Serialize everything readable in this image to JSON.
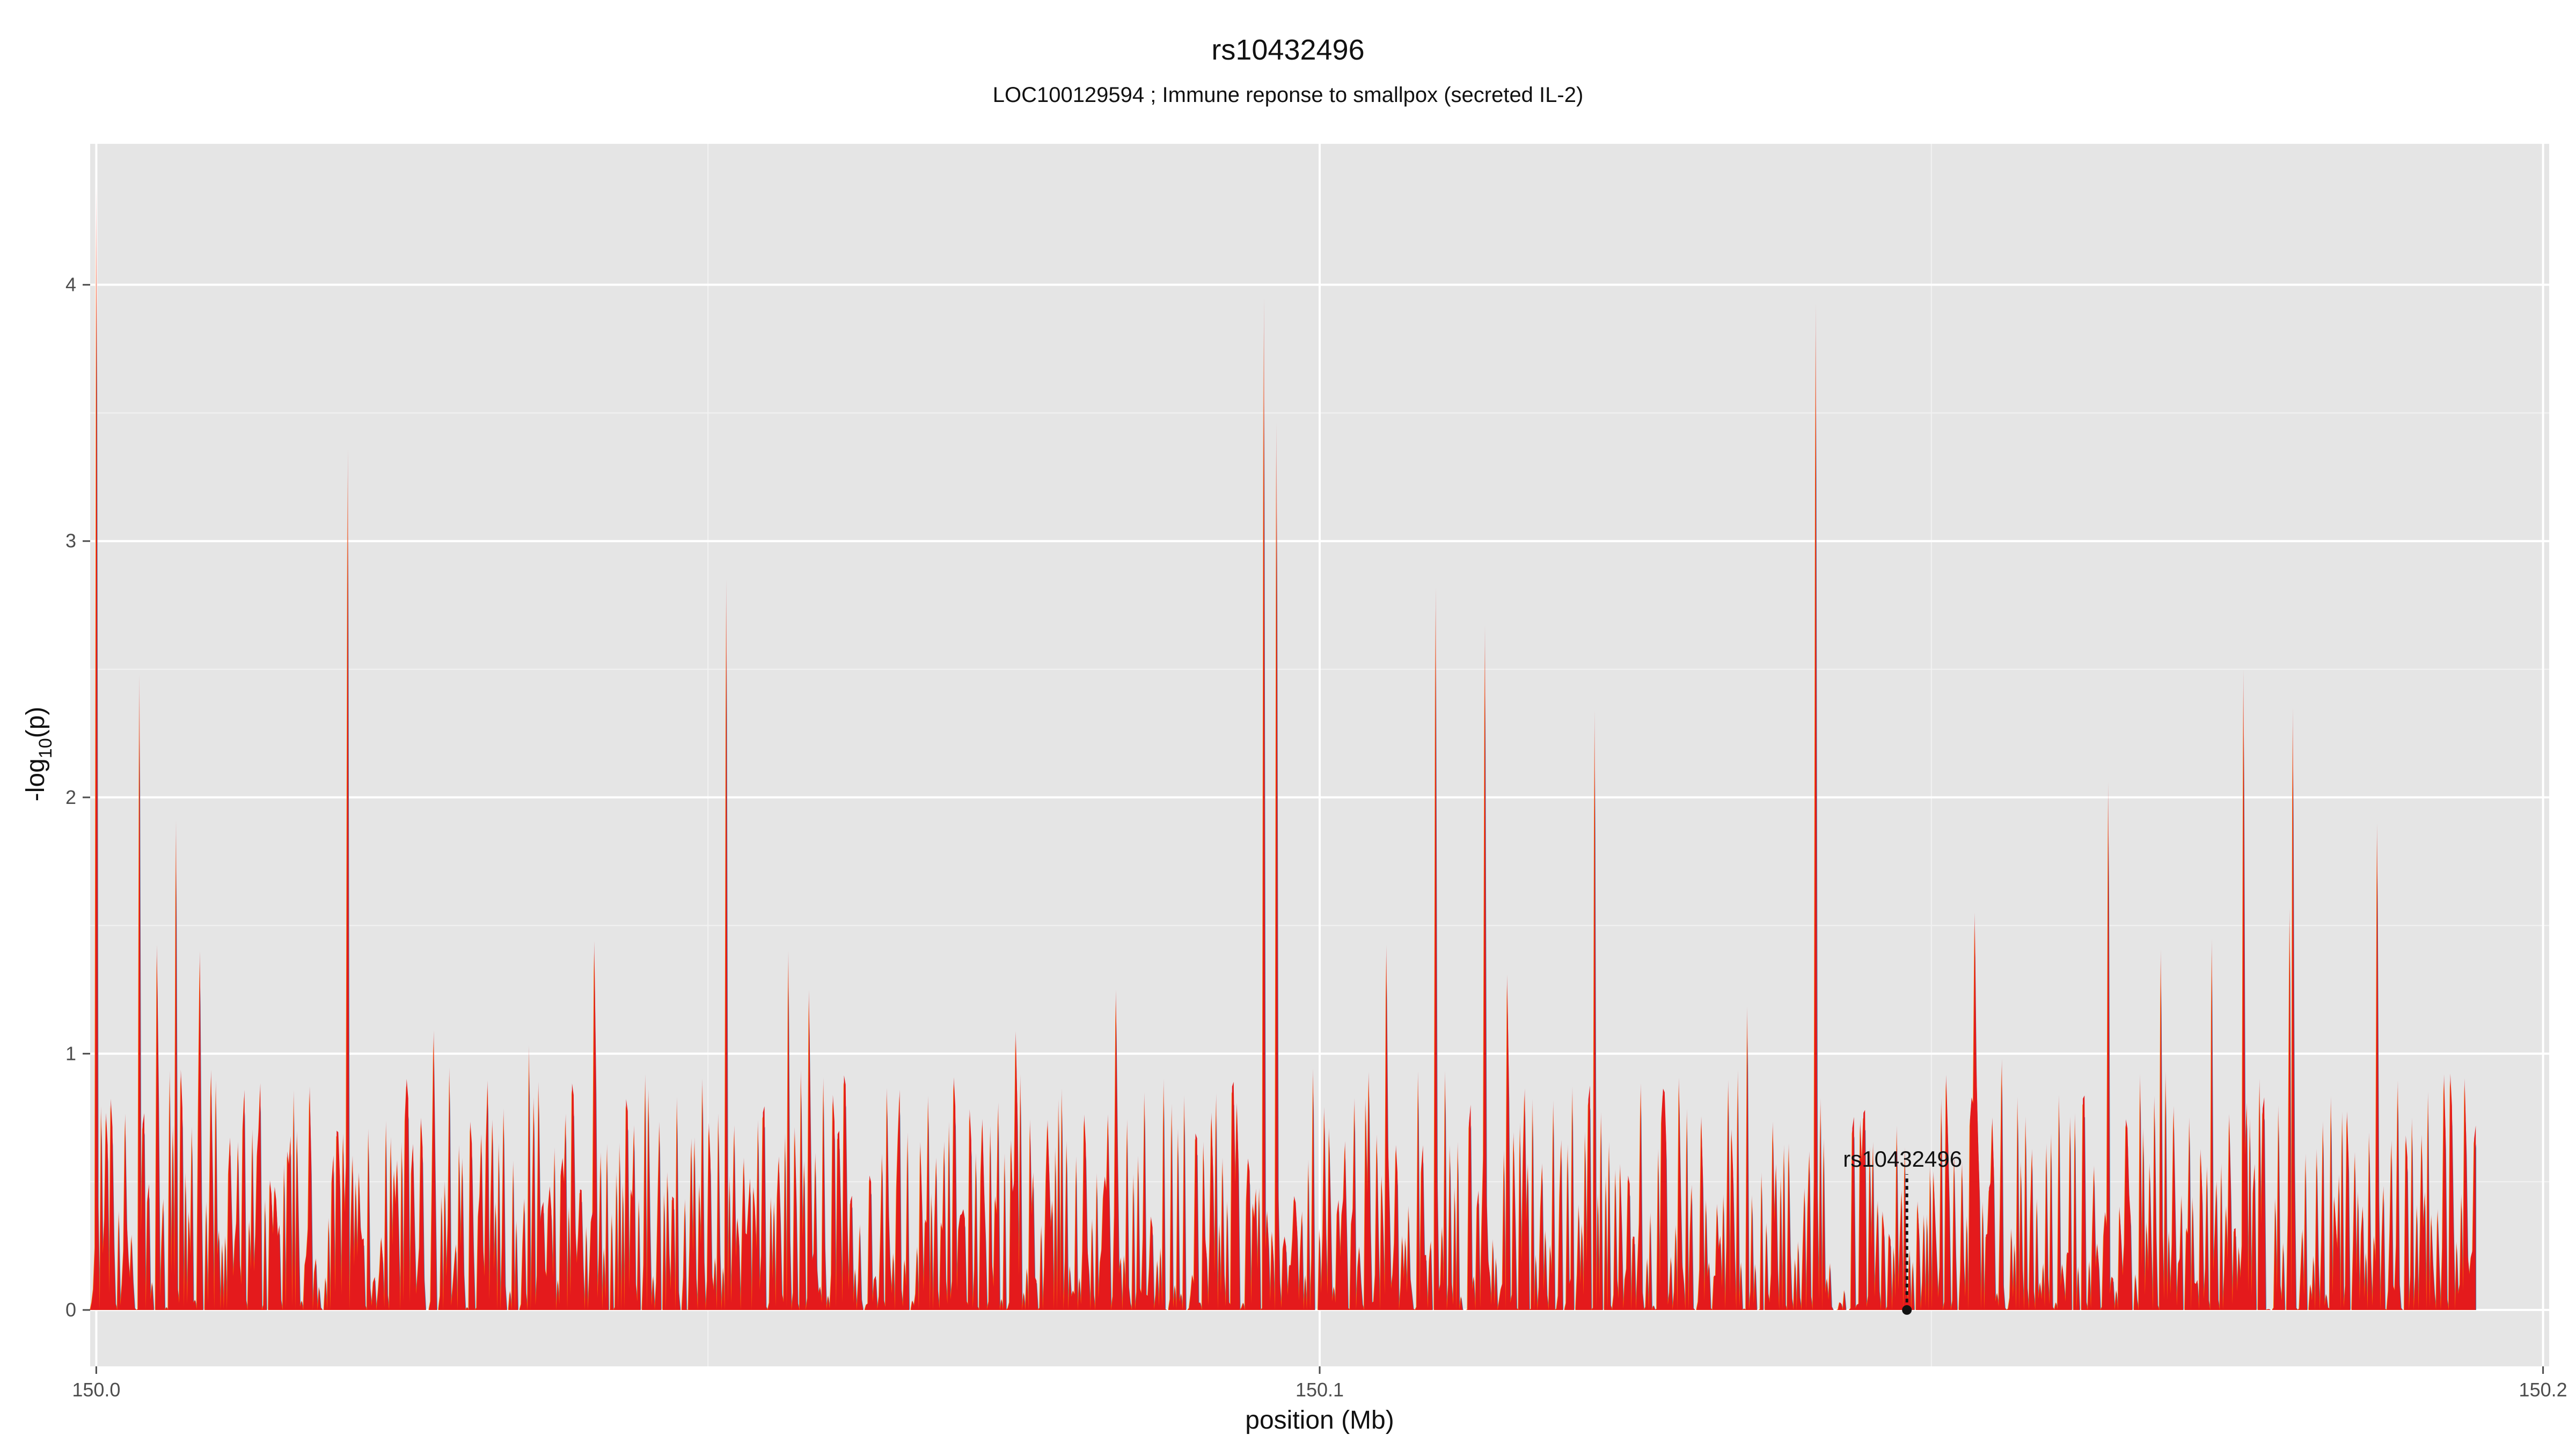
{
  "chart_data": {
    "type": "area",
    "title": "rs10432496",
    "subtitle": "LOC100129594 ; Immune reponse to smallpox (secreted IL-2)",
    "xlabel": "position (Mb)",
    "ylabel": "-log10(p)",
    "xlim": [
      149.9995,
      150.2005
    ],
    "ylim": [
      -0.22,
      4.55
    ],
    "x_ticks": [
      150.0,
      150.1,
      150.2
    ],
    "x_tick_labels": [
      "150.0",
      "150.1",
      "150.2"
    ],
    "y_ticks": [
      0,
      1,
      2,
      3,
      4
    ],
    "y_tick_labels": [
      "0",
      "1",
      "2",
      "3",
      "4"
    ],
    "grid": true,
    "background": "#e5e5e5",
    "series_colors": [
      "#e41a1c",
      "#ff7f00",
      "#377eb8"
    ],
    "annotation": {
      "label": "rs10432496",
      "x": 150.148,
      "y": 0
    },
    "peaks": [
      {
        "x": 150.0,
        "y": 4.39
      },
      {
        "x": 150.0035,
        "y": 2.48
      },
      {
        "x": 150.0065,
        "y": 1.91
      },
      {
        "x": 150.0205,
        "y": 3.36
      },
      {
        "x": 150.0515,
        "y": 2.85
      },
      {
        "x": 150.0955,
        "y": 3.95
      },
      {
        "x": 150.0965,
        "y": 3.46
      },
      {
        "x": 150.1095,
        "y": 2.82
      },
      {
        "x": 150.1135,
        "y": 2.67
      },
      {
        "x": 150.1225,
        "y": 2.34
      },
      {
        "x": 150.1405,
        "y": 3.93
      },
      {
        "x": 150.1535,
        "y": 1.55
      },
      {
        "x": 150.1645,
        "y": 2.06
      },
      {
        "x": 150.1755,
        "y": 2.5
      },
      {
        "x": 150.1795,
        "y": 2.35
      },
      {
        "x": 150.1865,
        "y": 1.9
      },
      {
        "x": 150.1945,
        "y": 0.72
      }
    ]
  }
}
